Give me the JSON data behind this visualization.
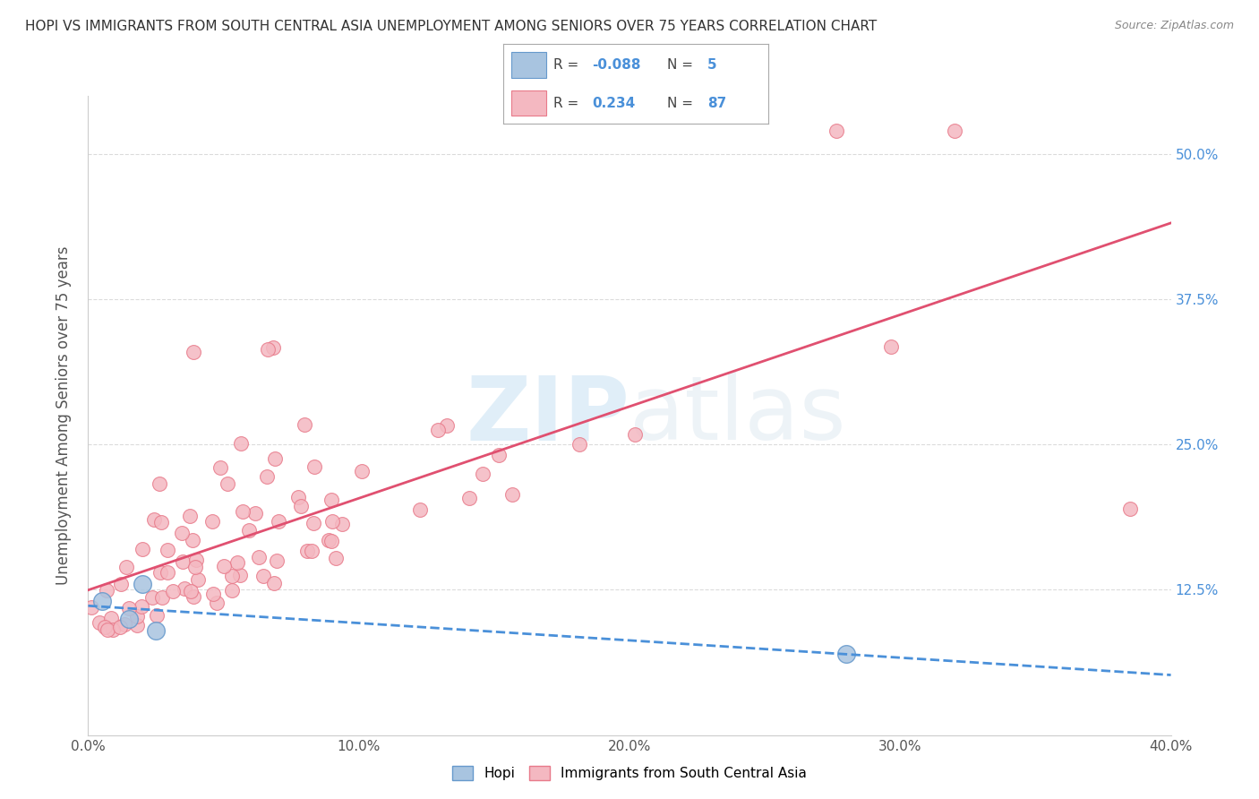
{
  "title": "HOPI VS IMMIGRANTS FROM SOUTH CENTRAL ASIA UNEMPLOYMENT AMONG SENIORS OVER 75 YEARS CORRELATION CHART",
  "source": "Source: ZipAtlas.com",
  "ylabel": "Unemployment Among Seniors over 75 years",
  "xlim": [
    0.0,
    0.4
  ],
  "ylim": [
    0.0,
    0.55
  ],
  "xticks": [
    0.0,
    0.1,
    0.2,
    0.3,
    0.4
  ],
  "xticklabels": [
    "0.0%",
    "10.0%",
    "20.0%",
    "30.0%",
    "40.0%"
  ],
  "ytick_right": [
    0.125,
    0.25,
    0.375,
    0.5
  ],
  "ytick_right_labels": [
    "12.5%",
    "25.0%",
    "37.5%",
    "50.0%"
  ],
  "hopi_color": "#a8c4e0",
  "hopi_edge": "#6699cc",
  "immigrants_color": "#f4b8c1",
  "immigrants_edge": "#e87a8a",
  "trend_hopi_color": "#4a90d9",
  "trend_immigrants_color": "#e05070",
  "watermark_zip": "ZIP",
  "watermark_atlas": "atlas",
  "background_color": "#ffffff",
  "grid_color": "#cccccc"
}
